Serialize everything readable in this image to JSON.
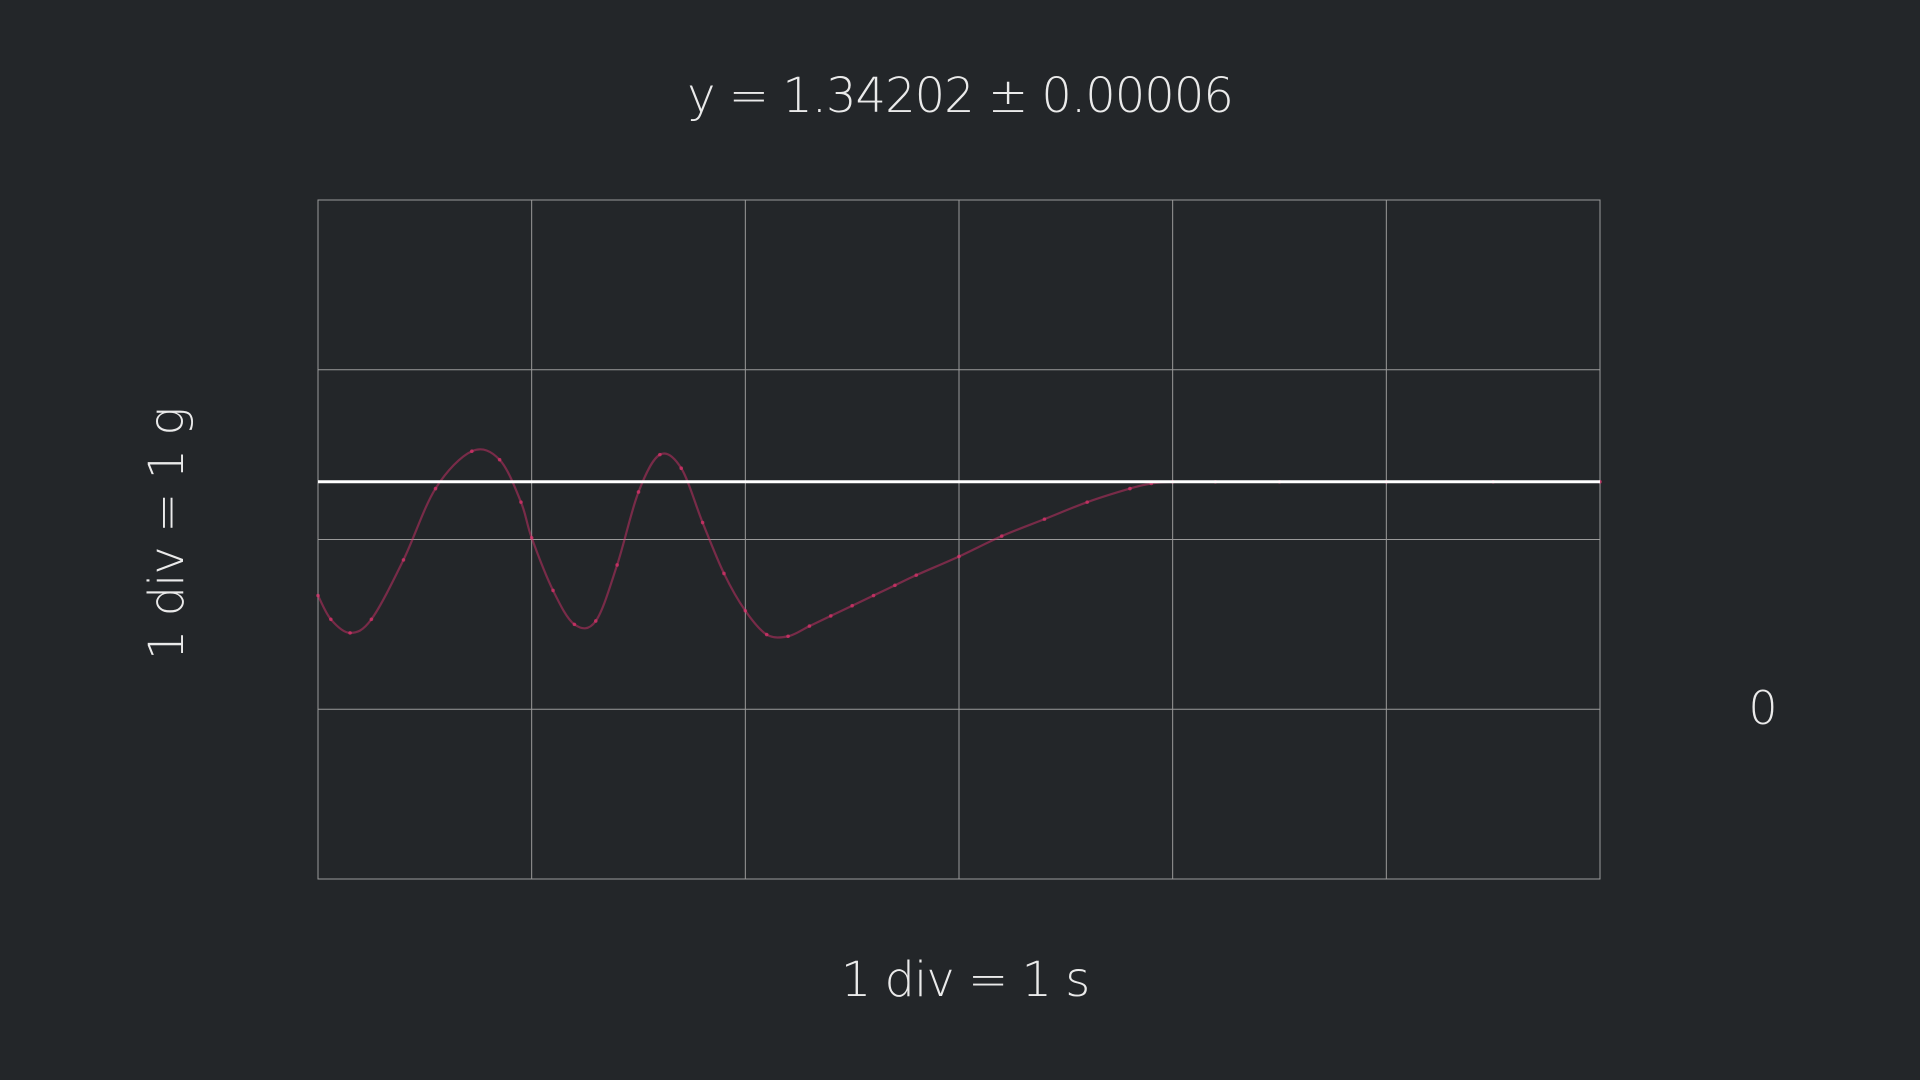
{
  "title": "y = 1.34202 ± 0.00006",
  "x_axis_label": "1 div = 1 s",
  "y_axis_label": "1 div = 1 g",
  "right_readout": "0",
  "colors": {
    "background": "#232629",
    "grid": "#9a9a9a",
    "reference_line": "#ffffff",
    "trace": "#e0336e"
  },
  "chart_data": {
    "type": "line",
    "title": "y = 1.34202 ± 0.00006",
    "xlabel": "1 div = 1 s",
    "ylabel": "1 div = 1 g",
    "xlim": [
      0,
      6
    ],
    "ylim": [
      -2,
      2
    ],
    "grid": true,
    "x_divisions": 6,
    "y_divisions": 4,
    "reference_line_y": 0.34,
    "series": [
      {
        "x": [
          0,
          0.06,
          0.15,
          0.25,
          0.4,
          0.55,
          0.72,
          0.85,
          0.95,
          1.0,
          1.1,
          1.2,
          1.3,
          1.4,
          1.5,
          1.6,
          1.7,
          1.8,
          1.9,
          2.0,
          2.1,
          2.2,
          2.3,
          2.4,
          2.5,
          2.6,
          2.7,
          2.8,
          3.0,
          3.2,
          3.4,
          3.6,
          3.8,
          3.9,
          4.0,
          4.2,
          4.5,
          5.0,
          5.5,
          6.0
        ],
        "y": [
          -0.33,
          -0.47,
          -0.55,
          -0.47,
          -0.12,
          0.3,
          0.52,
          0.47,
          0.22,
          0.01,
          -0.3,
          -0.5,
          -0.48,
          -0.15,
          0.28,
          0.5,
          0.42,
          0.1,
          -0.2,
          -0.42,
          -0.56,
          -0.57,
          -0.51,
          -0.45,
          -0.39,
          -0.33,
          -0.27,
          -0.21,
          -0.1,
          0.02,
          0.12,
          0.22,
          0.3,
          0.33,
          0.34,
          0.34,
          0.34,
          0.34,
          0.34,
          0.34
        ]
      }
    ]
  }
}
